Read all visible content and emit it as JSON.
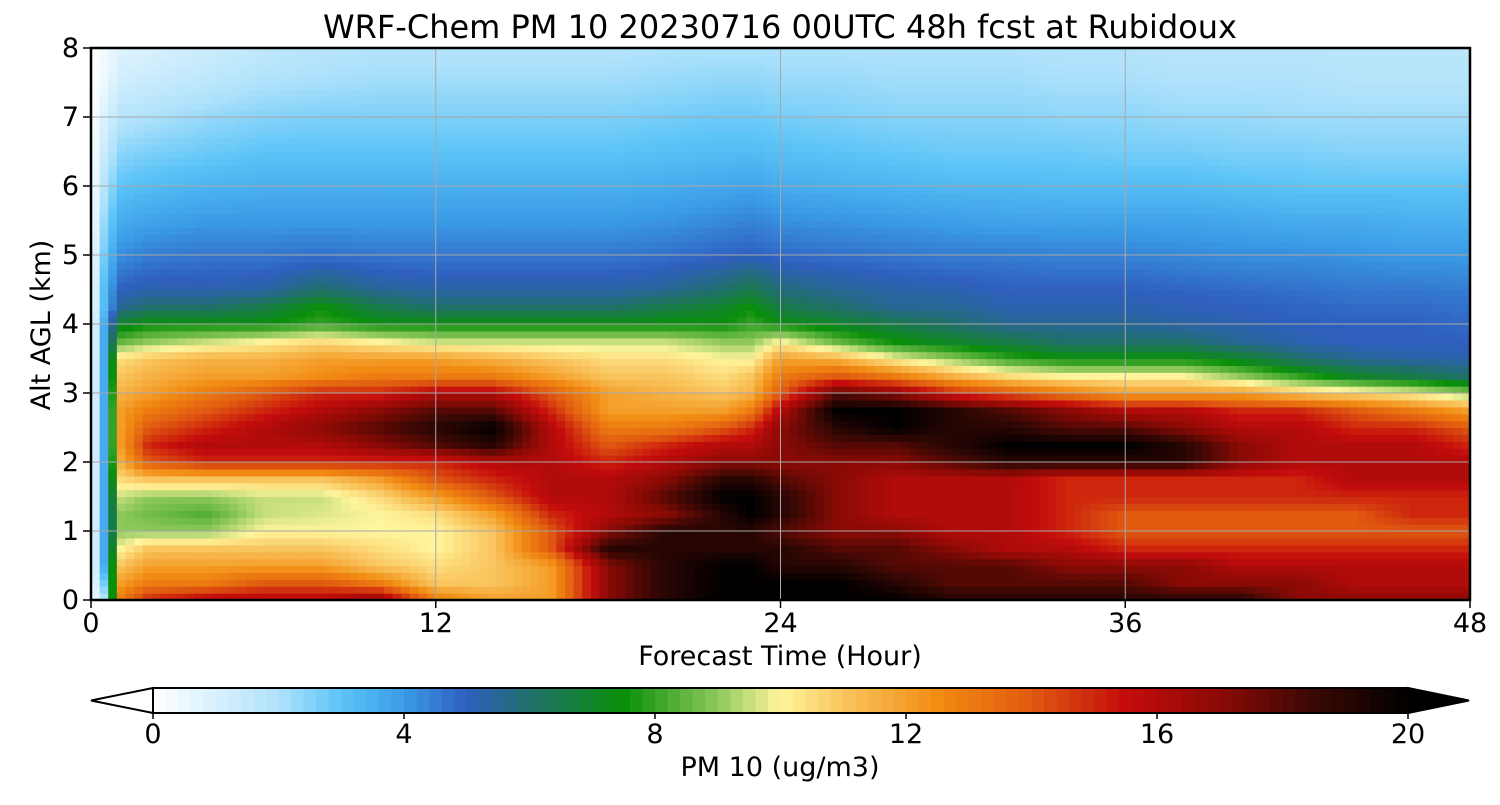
{
  "chart_data": {
    "type": "heatmap",
    "title": "WRF-Chem PM 10  20230716 00UTC 48h fcst at Rubidoux",
    "xlabel": "Forecast Time (Hour)",
    "ylabel": "Alt AGL (km)",
    "xlim": [
      0,
      48
    ],
    "ylim": [
      0,
      8
    ],
    "x_ticks": [
      0,
      12,
      24,
      36,
      48
    ],
    "y_ticks": [
      0,
      1,
      2,
      3,
      4,
      5,
      6,
      7,
      8
    ],
    "grid": true,
    "colorbar": {
      "label": "PM 10  (ug/m3)",
      "range": [
        0,
        20
      ],
      "ticks": [
        0,
        4,
        8,
        12,
        16,
        20
      ],
      "extend": "both",
      "orientation": "horizontal",
      "color_stops": [
        {
          "v": 0,
          "c": "#ffffff"
        },
        {
          "v": 2,
          "c": "#b0e2fb"
        },
        {
          "v": 3,
          "c": "#5cc4f7"
        },
        {
          "v": 4,
          "c": "#3a9be6"
        },
        {
          "v": 5,
          "c": "#2f5fbf"
        },
        {
          "v": 6,
          "c": "#1f6f6a"
        },
        {
          "v": 7.5,
          "c": "#0a8f0a"
        },
        {
          "v": 9,
          "c": "#8ec85c"
        },
        {
          "v": 10,
          "c": "#fff59d"
        },
        {
          "v": 11,
          "c": "#f9c55e"
        },
        {
          "v": 12.5,
          "c": "#f28c12"
        },
        {
          "v": 14,
          "c": "#e05a10"
        },
        {
          "v": 15.5,
          "c": "#c40c0c"
        },
        {
          "v": 17,
          "c": "#8b0a05"
        },
        {
          "v": 18.5,
          "c": "#3a0804"
        },
        {
          "v": 20,
          "c": "#000000"
        }
      ]
    },
    "x": [
      0,
      0.5,
      1,
      2,
      4,
      6,
      8,
      10,
      12,
      14,
      16,
      18,
      20,
      22,
      23,
      24,
      26,
      28,
      30,
      32,
      34,
      36,
      38,
      40,
      42,
      44,
      46,
      48
    ],
    "y": [
      0,
      0.25,
      0.5,
      0.75,
      1,
      1.25,
      1.5,
      1.75,
      2,
      2.25,
      2.5,
      2.75,
      3,
      3.25,
      3.5,
      3.75,
      4,
      4.25,
      4.5,
      5,
      5.5,
      6,
      6.5,
      7,
      7.5,
      8
    ],
    "values": [
      [
        0,
        2,
        13,
        15,
        16,
        16,
        16,
        17,
        13,
        12,
        12,
        17,
        19,
        20,
        20,
        20,
        20,
        20,
        19,
        19,
        19,
        19,
        19,
        19,
        17,
        17,
        17,
        17
      ],
      [
        0,
        3,
        12,
        13,
        13,
        14,
        14,
        13,
        11,
        11,
        12,
        17,
        19,
        20,
        20,
        20,
        20,
        19,
        18,
        18,
        18,
        18,
        17,
        17,
        17,
        16,
        16,
        16
      ],
      [
        0,
        4,
        11,
        12,
        12,
        12,
        12,
        11,
        10.5,
        11,
        12,
        17,
        19,
        20,
        20,
        19,
        19,
        18,
        18,
        18,
        17,
        17,
        17,
        16,
        16,
        16,
        16,
        16
      ],
      [
        0,
        4,
        10,
        11,
        11,
        11,
        11,
        10.5,
        10,
        11,
        14,
        19,
        19,
        19,
        19,
        19,
        18,
        18,
        17,
        16,
        16,
        15,
        15,
        15,
        15,
        15,
        15,
        15
      ],
      [
        0,
        4,
        9,
        9,
        9,
        10,
        10,
        10,
        10,
        11,
        14,
        17,
        19,
        19,
        19,
        18,
        17,
        17,
        16,
        16,
        15,
        14,
        14,
        14,
        14,
        14,
        14,
        14
      ],
      [
        0,
        4,
        9,
        8.7,
        8.3,
        9.5,
        9.7,
        10,
        10.5,
        12,
        15,
        16,
        17,
        19,
        20,
        19,
        17,
        16,
        16,
        16,
        15,
        14,
        14,
        14,
        14,
        14,
        15,
        15
      ],
      [
        0,
        4,
        9.5,
        9,
        9,
        9.5,
        9.5,
        10.5,
        12,
        14,
        16,
        16,
        18,
        20,
        20,
        19,
        17,
        16,
        16,
        16,
        15,
        15,
        15,
        15,
        15,
        15,
        15,
        15
      ],
      [
        0,
        4,
        10.5,
        11,
        11,
        11,
        11,
        12,
        14,
        15,
        16,
        16,
        17,
        19,
        19,
        18,
        17,
        16,
        16,
        16,
        15,
        15,
        15,
        15,
        15,
        16,
        16,
        16
      ],
      [
        0,
        4,
        11.5,
        14,
        15,
        15,
        15,
        15,
        15,
        16,
        16,
        15,
        16,
        17,
        17,
        17,
        17,
        17,
        18,
        19,
        19,
        19,
        19,
        17,
        16,
        16,
        16,
        16
      ],
      [
        0,
        4,
        12,
        15,
        16,
        16,
        16,
        17,
        18,
        19,
        16,
        14,
        15,
        16,
        16,
        17,
        18,
        18,
        19,
        20,
        20,
        20,
        19,
        17,
        16,
        16,
        16,
        15
      ],
      [
        0,
        4,
        12,
        14,
        15,
        16,
        17,
        18,
        19,
        20,
        16,
        13,
        13,
        14,
        15,
        17,
        19,
        20,
        19,
        19,
        18,
        18,
        17,
        16,
        16,
        15,
        15,
        14
      ],
      [
        0,
        4,
        12,
        13,
        14,
        15,
        16,
        17,
        18,
        18,
        15,
        12,
        12,
        12,
        13,
        16,
        20,
        20,
        19,
        18,
        17,
        16,
        16,
        15,
        15,
        14,
        13,
        12
      ],
      [
        0,
        4,
        11.5,
        12,
        13,
        14,
        15,
        15,
        16,
        16,
        14,
        12,
        11.5,
        11,
        11.5,
        14,
        18,
        17,
        15,
        14,
        13,
        12,
        12,
        12,
        11,
        10.5,
        10,
        9
      ],
      [
        0,
        4,
        11,
        11.5,
        12,
        12,
        12.5,
        13,
        13,
        13,
        12,
        11,
        11,
        10.5,
        11,
        13,
        14,
        13,
        11.5,
        10.5,
        10,
        10,
        10,
        9,
        8,
        7,
        6.5,
        6
      ],
      [
        0,
        4,
        10.5,
        11,
        11.5,
        11.5,
        12,
        12,
        12,
        11.5,
        11,
        10.5,
        10.5,
        10,
        10,
        12,
        11.5,
        10,
        9,
        8,
        7.5,
        7.5,
        7.5,
        7,
        6,
        5.5,
        5.3,
        5.2
      ],
      [
        0,
        4,
        8.5,
        9,
        9.5,
        10,
        10.5,
        10,
        9.5,
        9.5,
        9.5,
        9.5,
        9.5,
        9,
        9,
        10,
        8.5,
        7.5,
        7,
        6.5,
        6,
        6,
        6,
        5.5,
        5.2,
        5,
        5,
        5
      ],
      [
        0,
        4,
        7,
        7.5,
        7.5,
        7.5,
        8,
        7.5,
        7.5,
        7.5,
        7.5,
        7.5,
        7.5,
        7.5,
        8,
        7.5,
        7,
        6.5,
        6,
        5.5,
        5.5,
        5.5,
        5.3,
        5.2,
        5,
        5,
        5,
        4.8
      ],
      [
        0,
        3.5,
        5.5,
        6,
        6,
        6.5,
        7.5,
        6.5,
        6,
        6,
        6,
        6,
        6.5,
        7,
        7.5,
        6.5,
        6,
        5.5,
        5.5,
        5.2,
        5.2,
        5.2,
        5.1,
        5,
        4.9,
        4.8,
        4.8,
        4.7
      ],
      [
        0,
        3.5,
        5,
        5.2,
        5.2,
        5.3,
        6,
        5.5,
        5.3,
        5.3,
        5.3,
        5.3,
        5.5,
        6,
        6.5,
        5.8,
        5.5,
        5.3,
        5.2,
        5,
        5,
        5,
        4.9,
        4.8,
        4.7,
        4.6,
        4.6,
        4.5
      ],
      [
        0,
        3,
        4.2,
        4.5,
        4.6,
        4.6,
        4.7,
        4.6,
        4.6,
        4.6,
        4.6,
        4.6,
        4.7,
        4.9,
        5,
        4.8,
        4.7,
        4.6,
        4.5,
        4.5,
        4.4,
        4.4,
        4.3,
        4.2,
        4.2,
        4.1,
        4,
        4
      ],
      [
        0,
        2.5,
        3.6,
        3.8,
        4,
        4,
        4,
        4,
        4,
        4,
        4,
        4,
        4.1,
        4.3,
        4.4,
        4.2,
        4.1,
        4,
        3.9,
        3.8,
        3.8,
        3.8,
        3.8,
        3.7,
        3.6,
        3.6,
        3.5,
        3.5
      ],
      [
        0,
        2,
        3,
        3.2,
        3.4,
        3.5,
        3.5,
        3.5,
        3.5,
        3.5,
        3.5,
        3.5,
        3.6,
        3.7,
        3.8,
        3.6,
        3.5,
        3.4,
        3.3,
        3.3,
        3.2,
        3.2,
        3.2,
        3.1,
        3,
        3,
        3,
        3
      ],
      [
        0,
        1.5,
        2.4,
        2.6,
        2.8,
        3,
        3,
        3,
        3,
        3,
        3,
        3,
        3.1,
        3.2,
        3.2,
        3.1,
        3,
        2.9,
        2.8,
        2.8,
        2.8,
        2.7,
        2.7,
        2.6,
        2.6,
        2.5,
        2.5,
        2.5
      ],
      [
        0,
        1,
        1.8,
        2,
        2.3,
        2.5,
        2.6,
        2.6,
        2.6,
        2.6,
        2.6,
        2.6,
        2.7,
        2.8,
        2.8,
        2.7,
        2.6,
        2.5,
        2.5,
        2.5,
        2.4,
        2.4,
        2.3,
        2.3,
        2.2,
        2.2,
        2.2,
        2.2
      ],
      [
        0,
        0.5,
        1.2,
        1.4,
        1.7,
        2,
        2.1,
        2.2,
        2.2,
        2.2,
        2.2,
        2.2,
        2.3,
        2.4,
        2.4,
        2.3,
        2.3,
        2.2,
        2.2,
        2.2,
        2.1,
        2.1,
        2,
        2,
        2,
        1.9,
        1.9,
        1.9
      ],
      [
        0,
        0.3,
        0.8,
        1,
        1.3,
        1.6,
        1.8,
        1.9,
        1.9,
        1.9,
        1.9,
        1.9,
        2,
        2,
        2,
        2,
        2,
        2,
        2,
        2,
        1.9,
        1.9,
        1.8,
        1.8,
        1.8,
        1.7,
        1.7,
        1.7
      ]
    ]
  }
}
